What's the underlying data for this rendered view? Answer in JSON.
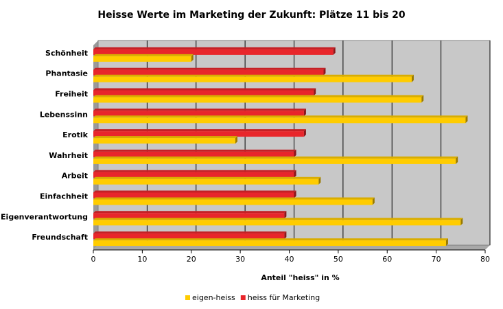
{
  "chart_data": {
    "type": "bar",
    "orientation": "horizontal",
    "title": "Heisse Werte im Marketing der Zukunft: Plätze 11 bis 20",
    "xlabel": "Anteil \"heiss\" in %",
    "ylabel": "",
    "xlim": [
      0,
      80
    ],
    "xticks": [
      0,
      10,
      20,
      30,
      40,
      50,
      60,
      70,
      80
    ],
    "grid": true,
    "legend_position": "bottom",
    "categories": [
      "Schönheit",
      "Phantasie",
      "Freiheit",
      "Lebenssinn",
      "Erotik",
      "Wahrheit",
      "Arbeit",
      "Einfachheit",
      "Eigenverantwortung",
      "Freundschaft"
    ],
    "series": [
      {
        "name": "heiss für Marketing",
        "color": "#e8262b",
        "values": [
          49,
          47,
          45,
          43,
          43,
          41,
          41,
          41,
          39,
          39
        ]
      },
      {
        "name": "eigen-heiss",
        "color": "#ffcc00",
        "values": [
          20,
          65,
          67,
          76,
          29,
          74,
          46,
          57,
          75,
          72
        ]
      }
    ],
    "legend_order": [
      "eigen-heiss",
      "heiss für Marketing"
    ],
    "plot_background": "#c8c8c8"
  }
}
